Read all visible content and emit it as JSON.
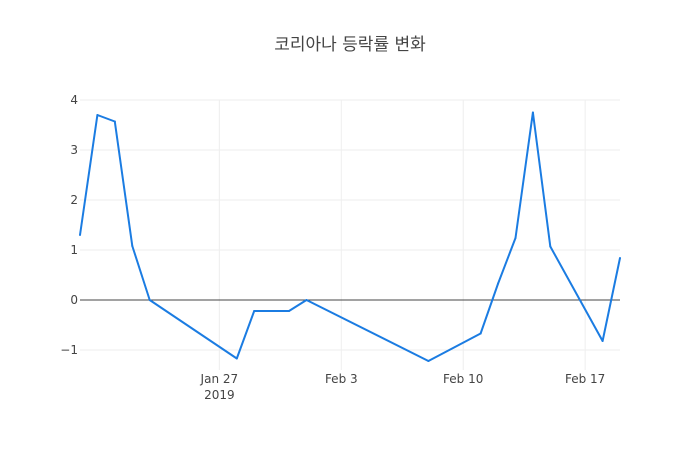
{
  "chart_data": {
    "type": "line",
    "title": "코리아나 등락률 변화",
    "xlabel": "",
    "ylabel": "",
    "x_axis": {
      "type": "date",
      "range": [
        "2019-01-19",
        "2019-02-19"
      ],
      "ticks": [
        {
          "date": "2019-01-27",
          "label": "Jan 27",
          "sublabel": "2019"
        },
        {
          "date": "2019-02-03",
          "label": "Feb 3",
          "sublabel": ""
        },
        {
          "date": "2019-02-10",
          "label": "Feb 10",
          "sublabel": ""
        },
        {
          "date": "2019-02-17",
          "label": "Feb 17",
          "sublabel": ""
        }
      ]
    },
    "y_axis": {
      "range": [
        -1.4,
        4.0
      ],
      "ticks": [
        {
          "value": 4,
          "label": "4"
        },
        {
          "value": 3,
          "label": "3"
        },
        {
          "value": 2,
          "label": "2"
        },
        {
          "value": 1,
          "label": "1"
        },
        {
          "value": 0,
          "label": "0"
        },
        {
          "value": -1,
          "label": "−1"
        }
      ]
    },
    "grid": true,
    "legend": "none",
    "series": [
      {
        "color": "#1f77b4",
        "points": [
          {
            "x": "2019-01-19",
            "y": 1.3
          },
          {
            "x": "2019-01-20",
            "y": 3.7
          },
          {
            "x": "2019-01-21",
            "y": 3.57
          },
          {
            "x": "2019-01-22",
            "y": 1.08
          },
          {
            "x": "2019-01-23",
            "y": 0.0
          },
          {
            "x": "2019-01-28",
            "y": -1.17
          },
          {
            "x": "2019-01-29",
            "y": -0.22
          },
          {
            "x": "2019-01-31",
            "y": -0.22
          },
          {
            "x": "2019-02-01",
            "y": 0.0
          },
          {
            "x": "2019-02-08",
            "y": -1.22
          },
          {
            "x": "2019-02-11",
            "y": -0.67
          },
          {
            "x": "2019-02-12",
            "y": 0.33
          },
          {
            "x": "2019-02-13",
            "y": 1.24
          },
          {
            "x": "2019-02-14",
            "y": 3.75
          },
          {
            "x": "2019-02-15",
            "y": 1.07
          },
          {
            "x": "2019-02-18",
            "y": -0.82
          },
          {
            "x": "2019-02-19",
            "y": 0.84
          }
        ]
      }
    ]
  },
  "colors": {
    "line": "#1b7ce2",
    "grid": "#eeeeee",
    "zero_line": "#444444",
    "text": "#444444"
  }
}
